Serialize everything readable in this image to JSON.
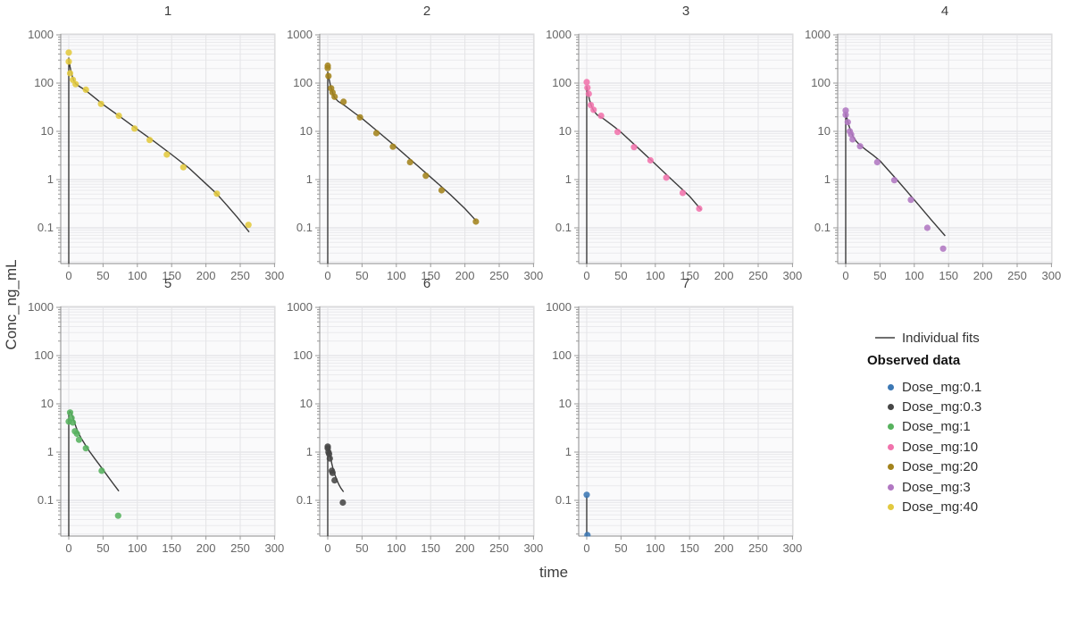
{
  "figure": {
    "y_axis_label": "Conc_ng_mL",
    "x_axis_label": "time"
  },
  "axes": {
    "x_ticks": [
      0,
      50,
      100,
      150,
      200,
      250,
      300
    ],
    "y_tick_labels": [
      "1000",
      "100",
      "10",
      "1",
      "0.1"
    ],
    "y_tick_values": [
      1000,
      100,
      10,
      1,
      0.1
    ],
    "x_range": [
      0,
      300
    ],
    "y_range": [
      0.018,
      1000
    ],
    "y_scale": "log",
    "grid": "on"
  },
  "legend": {
    "fit_label": "Individual fits",
    "observed_title": "Observed data",
    "position": "right-middle",
    "items": [
      {
        "label": "Dose_mg:0.1",
        "color": "#3c78b4"
      },
      {
        "label": "Dose_mg:0.3",
        "color": "#464646"
      },
      {
        "label": "Dose_mg:1",
        "color": "#57b25e"
      },
      {
        "label": "Dose_mg:10",
        "color": "#f173ac"
      },
      {
        "label": "Dose_mg:20",
        "color": "#a3831c"
      },
      {
        "label": "Dose_mg:3",
        "color": "#b177c2"
      },
      {
        "label": "Dose_mg:40",
        "color": "#e2c93f"
      }
    ]
  },
  "fit_line_color": "#3a3a3a",
  "chart_data": [
    {
      "type": "scatter",
      "title": "1",
      "dose_label": "Dose_mg:40",
      "color": "#e2c93f",
      "obs": [
        [
          0,
          430
        ],
        [
          0,
          280
        ],
        [
          2,
          160
        ],
        [
          6,
          117
        ],
        [
          10,
          95
        ],
        [
          25,
          73
        ],
        [
          47,
          37
        ],
        [
          73,
          21
        ],
        [
          96,
          11.4
        ],
        [
          118,
          6.6
        ],
        [
          143,
          3.3
        ],
        [
          167,
          1.8
        ],
        [
          216,
          0.51
        ],
        [
          262,
          0.115
        ]
      ],
      "fit": [
        [
          0,
          0.018
        ],
        [
          0,
          330
        ],
        [
          2,
          215
        ],
        [
          4,
          155
        ],
        [
          7,
          115
        ],
        [
          10,
          97
        ],
        [
          15,
          86
        ],
        [
          25,
          70
        ],
        [
          40,
          47
        ],
        [
          50,
          36
        ],
        [
          75,
          20
        ],
        [
          100,
          11
        ],
        [
          125,
          6.1
        ],
        [
          150,
          3.3
        ],
        [
          175,
          1.75
        ],
        [
          200,
          0.82
        ],
        [
          215,
          0.52
        ],
        [
          230,
          0.3
        ],
        [
          245,
          0.17
        ],
        [
          263,
          0.082
        ]
      ]
    },
    {
      "type": "scatter",
      "title": "2",
      "dose_label": "Dose_mg:20",
      "color": "#a3831c",
      "obs": [
        [
          0,
          230
        ],
        [
          0,
          205
        ],
        [
          1,
          140
        ],
        [
          5,
          78
        ],
        [
          7,
          64
        ],
        [
          10,
          52
        ],
        [
          23,
          41
        ],
        [
          47,
          19.5
        ],
        [
          71,
          9.2
        ],
        [
          95,
          4.8
        ],
        [
          120,
          2.3
        ],
        [
          143,
          1.2
        ],
        [
          166,
          0.6
        ],
        [
          216,
          0.135
        ]
      ],
      "fit": [
        [
          0,
          0.018
        ],
        [
          0,
          170
        ],
        [
          2,
          122
        ],
        [
          4,
          88
        ],
        [
          7,
          63
        ],
        [
          10,
          50
        ],
        [
          15,
          42
        ],
        [
          25,
          34
        ],
        [
          40,
          23.5
        ],
        [
          50,
          18.5
        ],
        [
          75,
          9.4
        ],
        [
          100,
          4.7
        ],
        [
          125,
          2.3
        ],
        [
          150,
          1.12
        ],
        [
          165,
          0.73
        ],
        [
          180,
          0.47
        ],
        [
          200,
          0.25
        ],
        [
          216,
          0.142
        ]
      ]
    },
    {
      "type": "scatter",
      "title": "3",
      "dose_label": "Dose_mg:10",
      "color": "#f173ac",
      "obs": [
        [
          0,
          105
        ],
        [
          1,
          80
        ],
        [
          3,
          60
        ],
        [
          6,
          35
        ],
        [
          10,
          28
        ],
        [
          21,
          21
        ],
        [
          45,
          9.7
        ],
        [
          69,
          4.7
        ],
        [
          93,
          2.5
        ],
        [
          116,
          1.1
        ],
        [
          140,
          0.53
        ],
        [
          164,
          0.25
        ]
      ],
      "fit": [
        [
          0,
          0.018
        ],
        [
          0,
          85
        ],
        [
          2,
          62
        ],
        [
          4,
          45
        ],
        [
          7,
          33
        ],
        [
          10,
          27
        ],
        [
          15,
          22
        ],
        [
          25,
          18
        ],
        [
          40,
          12.5
        ],
        [
          50,
          9.6
        ],
        [
          75,
          4.5
        ],
        [
          100,
          2.1
        ],
        [
          125,
          0.97
        ],
        [
          150,
          0.45
        ],
        [
          167,
          0.235
        ]
      ]
    },
    {
      "type": "scatter",
      "title": "4",
      "dose_label": "Dose_mg:3",
      "color": "#b177c2",
      "obs": [
        [
          0,
          27
        ],
        [
          0,
          22
        ],
        [
          3,
          15.5
        ],
        [
          6,
          10
        ],
        [
          8,
          8.6
        ],
        [
          10,
          6.8
        ],
        [
          21,
          4.9
        ],
        [
          46,
          2.3
        ],
        [
          71,
          0.97
        ],
        [
          95,
          0.38
        ],
        [
          119,
          0.1
        ],
        [
          142,
          0.037
        ]
      ],
      "fit": [
        [
          0,
          0.018
        ],
        [
          0,
          24
        ],
        [
          2,
          18.5
        ],
        [
          4,
          14
        ],
        [
          7,
          10.5
        ],
        [
          10,
          8.2
        ],
        [
          15,
          6.3
        ],
        [
          20,
          5.3
        ],
        [
          30,
          4.1
        ],
        [
          40,
          3.2
        ],
        [
          50,
          2.45
        ],
        [
          75,
          0.98
        ],
        [
          100,
          0.38
        ],
        [
          125,
          0.145
        ],
        [
          145,
          0.068
        ]
      ]
    },
    {
      "type": "scatter",
      "title": "5",
      "dose_label": "Dose_mg:1",
      "color": "#57b25e",
      "obs": [
        [
          0,
          4.3
        ],
        [
          2,
          6.6
        ],
        [
          4,
          5.1
        ],
        [
          6,
          4.1
        ],
        [
          9,
          2.7
        ],
        [
          12,
          2.4
        ],
        [
          15,
          1.8
        ],
        [
          25,
          1.2
        ],
        [
          48,
          0.41
        ],
        [
          72,
          0.048
        ]
      ],
      "fit": [
        [
          0,
          0.018
        ],
        [
          0,
          6.2
        ],
        [
          1.5,
          7
        ],
        [
          3,
          6.7
        ],
        [
          5,
          5.8
        ],
        [
          8,
          4.3
        ],
        [
          11,
          3.2
        ],
        [
          14,
          2.5
        ],
        [
          18,
          1.95
        ],
        [
          24,
          1.42
        ],
        [
          30,
          1.05
        ],
        [
          38,
          0.73
        ],
        [
          48,
          0.47
        ],
        [
          58,
          0.3
        ],
        [
          66,
          0.21
        ],
        [
          73,
          0.155
        ]
      ]
    },
    {
      "type": "scatter",
      "title": "6",
      "dose_label": "Dose_mg:0.3",
      "color": "#464646",
      "obs": [
        [
          0,
          1.3
        ],
        [
          0,
          1.2
        ],
        [
          1,
          1.0
        ],
        [
          2,
          0.92
        ],
        [
          3,
          0.74
        ],
        [
          6,
          0.41
        ],
        [
          7,
          0.37
        ],
        [
          10,
          0.26
        ],
        [
          22,
          0.09
        ]
      ],
      "fit": [
        [
          0,
          0.018
        ],
        [
          0,
          0.95
        ],
        [
          1,
          1.1
        ],
        [
          2,
          1.07
        ],
        [
          3,
          0.94
        ],
        [
          4,
          0.8
        ],
        [
          6,
          0.57
        ],
        [
          8,
          0.44
        ],
        [
          10,
          0.35
        ],
        [
          13,
          0.27
        ],
        [
          16,
          0.215
        ],
        [
          19,
          0.18
        ],
        [
          23,
          0.15
        ]
      ]
    },
    {
      "type": "scatter",
      "title": "7",
      "dose_label": "Dose_mg:0.1",
      "color": "#3c78b4",
      "obs": [
        [
          0,
          0.13
        ],
        [
          1,
          0.019
        ]
      ],
      "fit": [
        [
          0,
          0.018
        ],
        [
          0,
          0.125
        ]
      ]
    }
  ]
}
